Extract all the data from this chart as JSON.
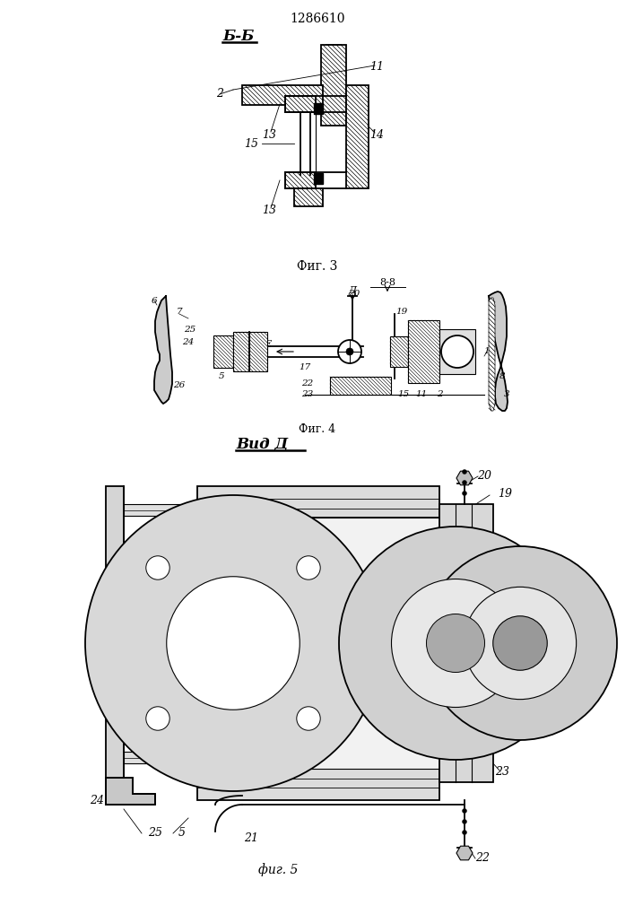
{
  "title": "1286610",
  "fig3_label": "Фиг. 3",
  "fig4_label": "Фиг. 4",
  "fig5_label": "фиг. 5",
  "section_bb": "Б-Б",
  "section_vv": "8-8",
  "view_d": "Вид Д",
  "bg_color": "#ffffff",
  "line_color": "#000000"
}
